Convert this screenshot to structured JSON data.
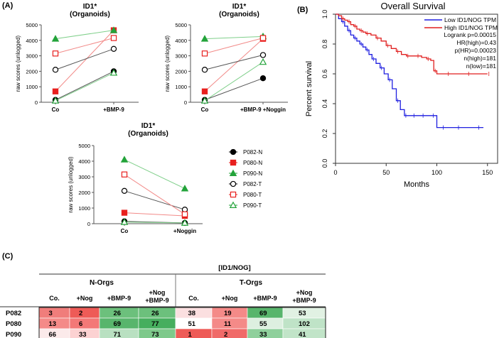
{
  "panels": {
    "a": "(A)",
    "b": "(B)",
    "c": "(C)"
  },
  "chart_data": [
    {
      "type": "line",
      "title": "ID1*\n(Organoids)",
      "title_lines": [
        "ID1*",
        "(Organoids)"
      ],
      "ylabel": "raw scores (unlogged)",
      "categories": [
        "Co",
        "+BMP-9"
      ],
      "ylim": [
        0,
        5000
      ],
      "yticks": [
        0,
        1000,
        2000,
        3000,
        4000,
        5000
      ],
      "series": [
        {
          "name": "P082-N",
          "values": [
            150,
            2000
          ],
          "color": "#000000",
          "marker": "circle-filled"
        },
        {
          "name": "P080-N",
          "values": [
            700,
            4650
          ],
          "color": "#e8201e",
          "marker": "square-filled"
        },
        {
          "name": "P090-N",
          "values": [
            4100,
            4650
          ],
          "color": "#23a33a",
          "marker": "triangle-filled"
        },
        {
          "name": "P082-T",
          "values": [
            2100,
            3450
          ],
          "color": "#000000",
          "marker": "circle-open"
        },
        {
          "name": "P080-T",
          "values": [
            3150,
            4150
          ],
          "color": "#e8201e",
          "marker": "square-open"
        },
        {
          "name": "P090-T",
          "values": [
            100,
            1900
          ],
          "color": "#23a33a",
          "marker": "triangle-open"
        }
      ]
    },
    {
      "type": "line",
      "title": "ID1*\n(Organoids)",
      "title_lines": [
        "ID1*",
        "(Organoids)"
      ],
      "ylabel": "raw scores (unlogged)",
      "categories": [
        "Co",
        "+BMP-9 +Noggin"
      ],
      "ylim": [
        0,
        5000
      ],
      "yticks": [
        0,
        1000,
        2000,
        3000,
        4000,
        5000
      ],
      "series": [
        {
          "name": "P082-N",
          "values": [
            150,
            1550
          ],
          "color": "#000000",
          "marker": "circle-filled"
        },
        {
          "name": "P080-N",
          "values": [
            700,
            4100
          ],
          "color": "#e8201e",
          "marker": "square-filled"
        },
        {
          "name": "P090-N",
          "values": [
            4100,
            4250
          ],
          "color": "#23a33a",
          "marker": "triangle-filled"
        },
        {
          "name": "P082-T",
          "values": [
            2100,
            3050
          ],
          "color": "#000000",
          "marker": "circle-open"
        },
        {
          "name": "P080-T",
          "values": [
            3150,
            4150
          ],
          "color": "#e8201e",
          "marker": "square-open"
        },
        {
          "name": "P090-T",
          "values": [
            100,
            2600
          ],
          "color": "#23a33a",
          "marker": "triangle-open"
        }
      ]
    },
    {
      "type": "line",
      "title": "ID1*\n(Organoids)",
      "title_lines": [
        "ID1*",
        "(Organoids)"
      ],
      "ylabel": "raw scores (unlogged)",
      "categories": [
        "Co",
        "+Noggin"
      ],
      "ylim": [
        0,
        5000
      ],
      "yticks": [
        0,
        1000,
        2000,
        3000,
        4000,
        5000
      ],
      "legend": {
        "position": "right",
        "entries": [
          "P082-N",
          "P080-N",
          "P090-N",
          "P082-T",
          "P080-T",
          "P090-T"
        ]
      },
      "series": [
        {
          "name": "P082-N",
          "values": [
            150,
            50
          ],
          "color": "#000000",
          "marker": "circle-filled"
        },
        {
          "name": "P080-N",
          "values": [
            700,
            500
          ],
          "color": "#e8201e",
          "marker": "square-filled"
        },
        {
          "name": "P090-N",
          "values": [
            4100,
            2250
          ],
          "color": "#23a33a",
          "marker": "triangle-filled"
        },
        {
          "name": "P082-T",
          "values": [
            2100,
            900
          ],
          "color": "#000000",
          "marker": "circle-open"
        },
        {
          "name": "P080-T",
          "values": [
            3150,
            600
          ],
          "color": "#e8201e",
          "marker": "square-open"
        },
        {
          "name": "P090-T",
          "values": [
            100,
            50
          ],
          "color": "#23a33a",
          "marker": "triangle-open"
        }
      ]
    },
    {
      "type": "line",
      "title": "Overall Survival",
      "xlabel": "Months",
      "ylabel": "Percent survival",
      "xlim": [
        0,
        160
      ],
      "ylim": [
        0,
        1
      ],
      "xticks": [
        0,
        50,
        100,
        150
      ],
      "yticks": [
        0.0,
        0.2,
        0.4,
        0.6,
        0.8,
        1.0
      ],
      "ytick_labels": [
        "0.0",
        "0.2",
        "0.4",
        "0.6",
        "0.8",
        "1.0"
      ],
      "legend": {
        "position": "top-right",
        "entries": [
          "Low ID1/NOG TPM",
          "High ID1/NOG TPM"
        ]
      },
      "annotations": [
        "Logrank p=0.00015",
        "HR(high)=0.43",
        "p(HR)=0.00023",
        "n(high)=181",
        "n(low)=181"
      ],
      "series": [
        {
          "name": "Low ID1/NOG TPM",
          "color": "#1f1fe0",
          "x": [
            0,
            3,
            6,
            9,
            12,
            15,
            18,
            21,
            24,
            27,
            30,
            33,
            36,
            40,
            44,
            48,
            52,
            56,
            60,
            64,
            68,
            72,
            76,
            80,
            85,
            90,
            95,
            100,
            105,
            110,
            120,
            130,
            140,
            146
          ],
          "y": [
            1.0,
            0.97,
            0.95,
            0.92,
            0.89,
            0.86,
            0.84,
            0.82,
            0.8,
            0.78,
            0.76,
            0.73,
            0.7,
            0.67,
            0.64,
            0.6,
            0.56,
            0.5,
            0.42,
            0.36,
            0.32,
            0.32,
            0.32,
            0.32,
            0.32,
            0.32,
            0.32,
            0.24,
            0.24,
            0.24,
            0.24,
            0.24,
            0.24,
            0.24
          ]
        },
        {
          "name": "High ID1/NOG TPM",
          "color": "#e01f1f",
          "x": [
            0,
            3,
            6,
            9,
            12,
            15,
            18,
            21,
            24,
            27,
            30,
            35,
            40,
            45,
            50,
            55,
            60,
            65,
            70,
            75,
            80,
            85,
            90,
            94,
            97,
            100,
            110,
            120,
            130,
            140,
            150
          ],
          "y": [
            1.0,
            0.99,
            0.97,
            0.96,
            0.95,
            0.93,
            0.92,
            0.9,
            0.89,
            0.88,
            0.87,
            0.86,
            0.84,
            0.82,
            0.79,
            0.77,
            0.75,
            0.73,
            0.72,
            0.72,
            0.72,
            0.71,
            0.7,
            0.69,
            0.62,
            0.6,
            0.6,
            0.6,
            0.6,
            0.6,
            0.6
          ]
        }
      ]
    },
    {
      "type": "table",
      "title": "[ID1/NOG]",
      "groups": [
        "N-Orgs",
        "T-Orgs"
      ],
      "columns": [
        [
          "Co."
        ],
        [
          "+Nog"
        ],
        [
          "+BMP-9"
        ],
        [
          "+Nog",
          "+BMP-9"
        ],
        [
          "Co."
        ],
        [
          "+Nog"
        ],
        [
          "+BMP-9"
        ],
        [
          "+Nog",
          "+BMP-9"
        ]
      ],
      "rows": [
        {
          "label": "P082",
          "values": [
            3,
            2,
            26,
            26,
            38,
            19,
            69,
            53
          ]
        },
        {
          "label": "P080",
          "values": [
            13,
            6,
            69,
            77,
            51,
            11,
            55,
            102
          ]
        },
        {
          "label": "P090",
          "values": [
            66,
            33,
            71,
            73,
            1,
            2,
            33,
            41
          ]
        }
      ],
      "cell_colors": [
        [
          "#f07d7b",
          "#ee5b57",
          "#6cc07c",
          "#6cc07c",
          "#fbdfe0",
          "#f48a88",
          "#58b56c",
          "#e1f1e3"
        ],
        [
          "#f48a88",
          "#f37877",
          "#58b56c",
          "#46ae5e",
          "#ffffff",
          "#f48a88",
          "#ddefe0",
          "#bfe3c7"
        ],
        [
          "#fbeaea",
          "#fcd2d2",
          "#b9e0c1",
          "#7ec98b",
          "#ee5b57",
          "#f06a68",
          "#8fd09c",
          "#c1e4c8"
        ]
      ]
    }
  ]
}
